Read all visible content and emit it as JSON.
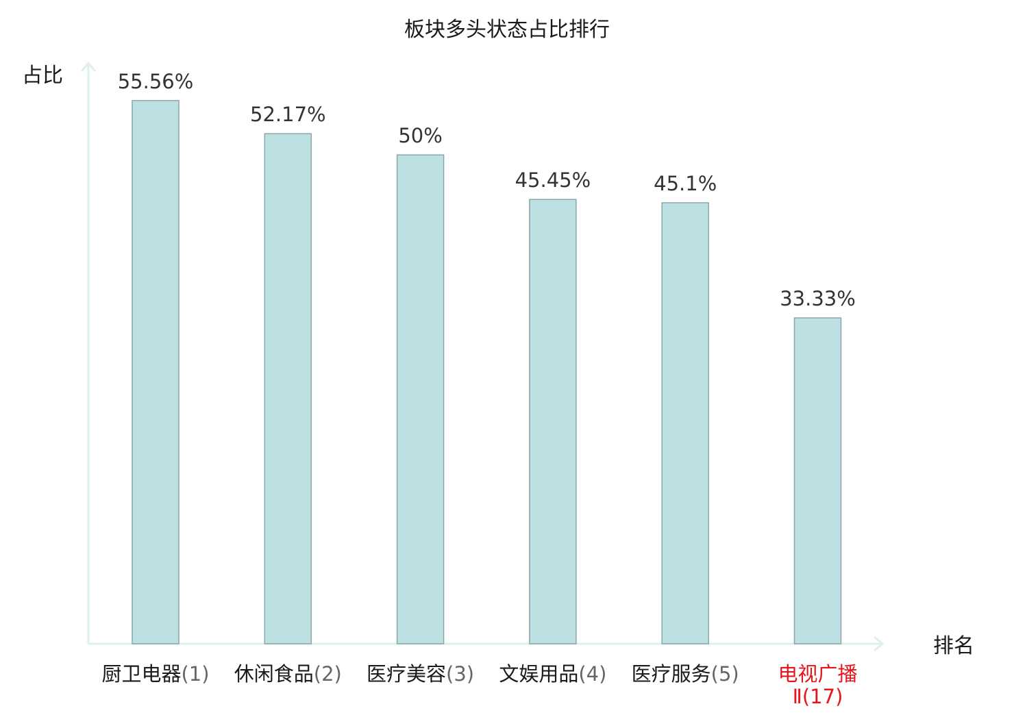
{
  "chart_data": {
    "type": "bar",
    "title": "板块多头状态占比排行",
    "ylabel": "占比",
    "xlabel": "排名",
    "unit": "%",
    "categories": [
      {
        "name": "厨卫电器",
        "rank": "(1)",
        "highlight": false
      },
      {
        "name": "休闲食品",
        "rank": "(2)",
        "highlight": false
      },
      {
        "name": "医疗美容",
        "rank": "(3)",
        "highlight": false
      },
      {
        "name": "文娱用品",
        "rank": "(4)",
        "highlight": false
      },
      {
        "name": "医疗服务",
        "rank": "(5)",
        "highlight": false
      },
      {
        "name": "电视广播",
        "rank": "Ⅱ(17)",
        "highlight": true
      }
    ],
    "values": [
      55.56,
      52.17,
      50,
      45.45,
      45.1,
      33.33
    ],
    "value_labels": [
      "55.56%",
      "52.17%",
      "50%",
      "45.45%",
      "45.1%",
      "33.33%"
    ],
    "ylim": [
      0,
      59.4
    ],
    "grid": false,
    "legend": "none",
    "colors": {
      "bar_fill": "#bde0e2",
      "bar_stroke": "#8aa6aa",
      "axis": "#dcf0ec",
      "text": "#333333",
      "label_text": "#1a1a1a",
      "rank_text": "#666666",
      "highlight": "#e8141c"
    }
  }
}
